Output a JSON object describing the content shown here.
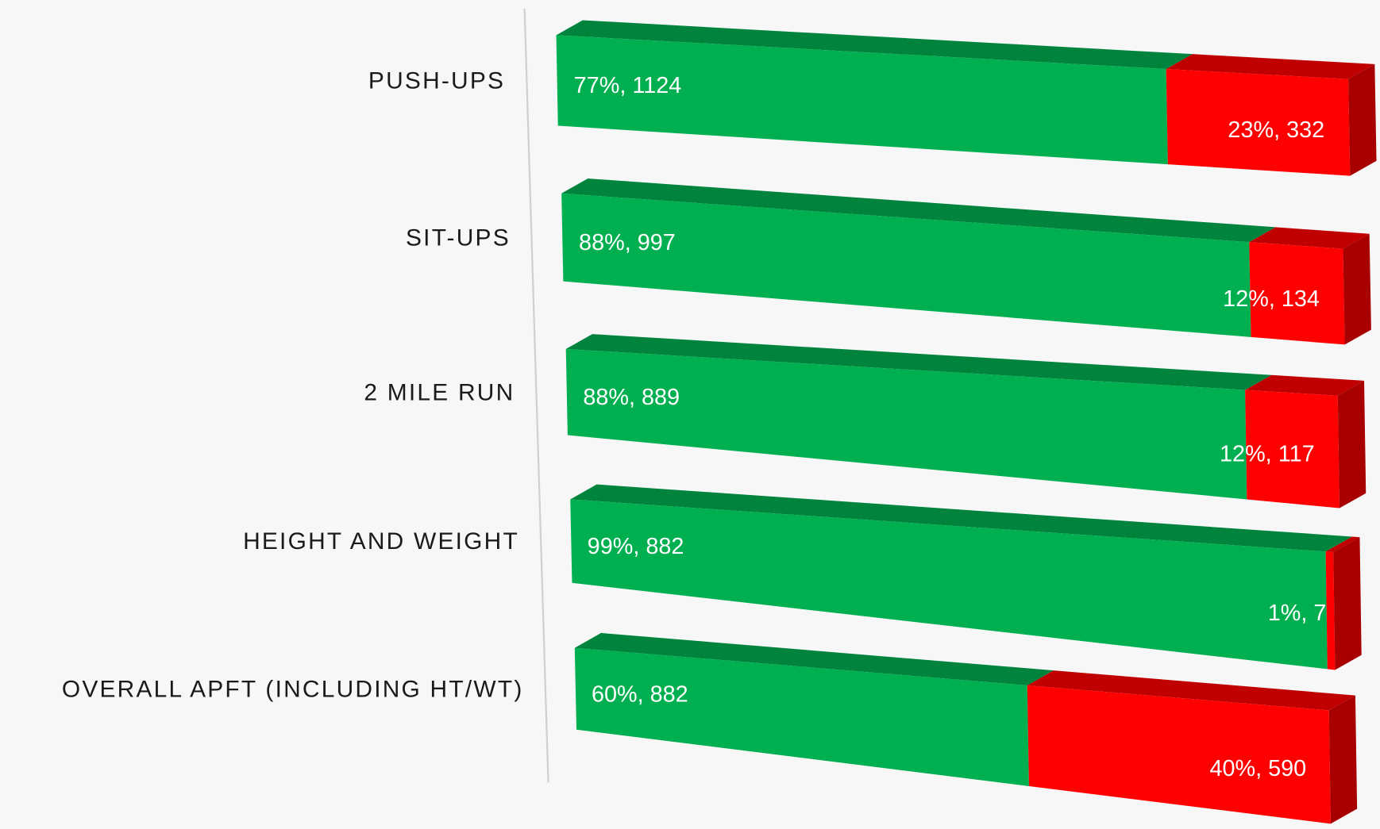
{
  "chart_data": {
    "type": "bar3d_stacked_horizontal",
    "categories": [
      "PUSH-UPS",
      "SIT-UPS",
      "2 MILE RUN",
      "HEIGHT AND WEIGHT",
      "OVERALL APFT (INCLUDING HT/WT)"
    ],
    "series": [
      {
        "color": "#00b050",
        "top_color": "#00843d",
        "values": [
          77,
          88,
          88,
          99,
          60
        ],
        "value_labels": [
          "77%, 1124",
          "88%, 997",
          "88%, 889",
          "99%, 882",
          "60%, 882"
        ]
      },
      {
        "color": "#ff0000",
        "top_color": "#c00000",
        "side_color": "#a80000",
        "values": [
          23,
          12,
          12,
          1,
          40
        ],
        "value_labels": [
          "23%, 332",
          "12%, 134",
          "12%, 117",
          "1%, 7",
          "40%, 590"
        ]
      }
    ]
  }
}
